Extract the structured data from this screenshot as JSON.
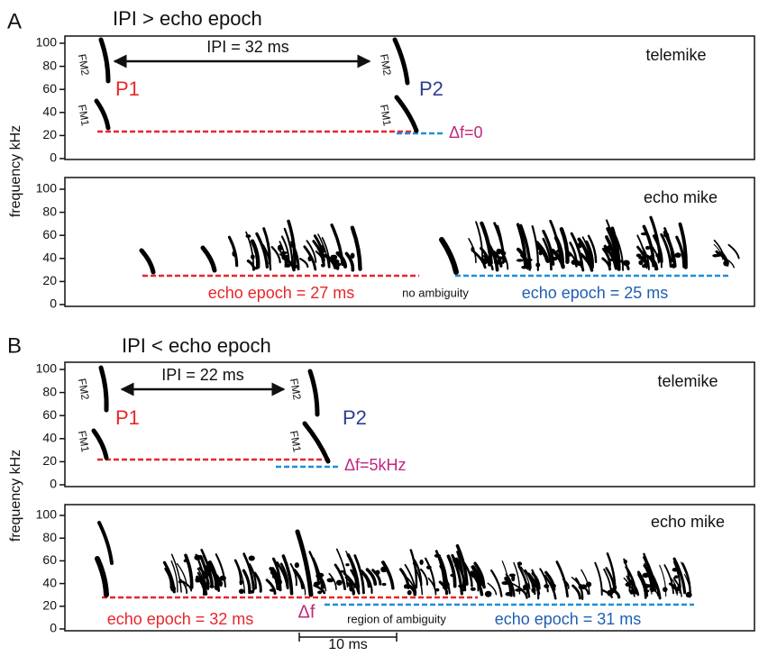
{
  "panels": [
    {
      "label": "A",
      "title": "IPI > echo epoch",
      "y_axis_label": "frequency kHz",
      "telemike": {
        "yticks": [
          0,
          20,
          40,
          60,
          80,
          100
        ],
        "mic": "telemike",
        "ipi": "IPI = 32 ms",
        "p1": "P1",
        "p2": "P2",
        "fm_labels": [
          "FM2",
          "FM1",
          "FM2",
          "FM1"
        ],
        "delta_f": "Δf=0"
      },
      "echo": {
        "yticks": [
          0,
          20,
          40,
          60,
          80,
          100
        ],
        "mic": "echo mike",
        "epoch1": "echo epoch = 27 ms",
        "middle": "no ambiguity",
        "epoch2": "echo epoch = 25 ms"
      }
    },
    {
      "label": "B",
      "title": "IPI < echo epoch",
      "y_axis_label": "frequency kHz",
      "telemike": {
        "yticks": [
          0,
          20,
          40,
          60,
          80,
          100
        ],
        "mic": "telemike",
        "ipi": "IPI = 22 ms",
        "p1": "P1",
        "p2": "P2",
        "fm_labels": [
          "FM2",
          "FM1",
          "FM2",
          "FM1"
        ],
        "delta_f": "Δf=5kHz"
      },
      "echo": {
        "yticks": [
          0,
          20,
          40,
          60,
          80,
          100
        ],
        "mic": "echo mike",
        "epoch1": "echo epoch = 32 ms",
        "delta": "Δf",
        "middle": "region of ambiguity",
        "epoch2": "echo epoch = 31 ms",
        "scale": "10 ms"
      }
    }
  ]
}
